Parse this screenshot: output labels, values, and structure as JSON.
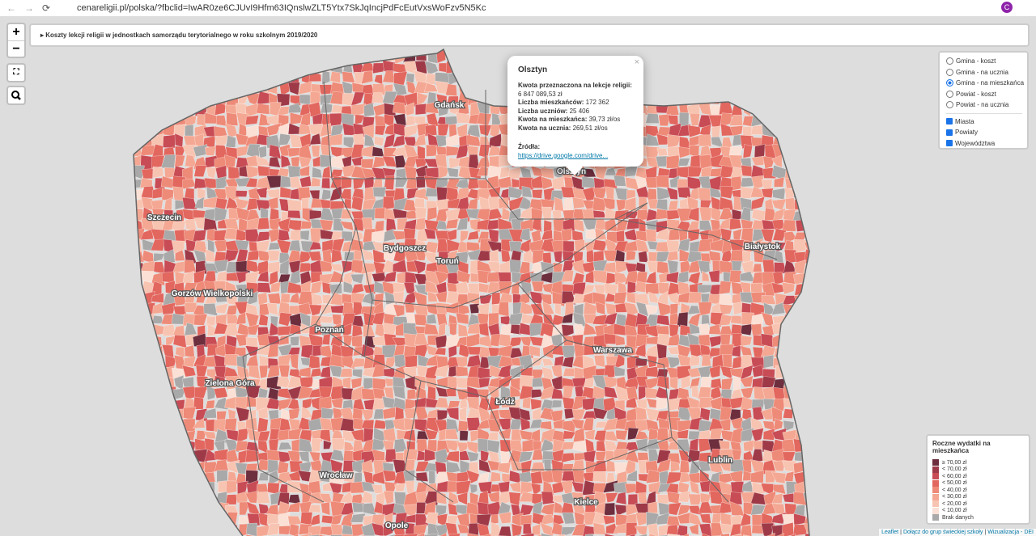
{
  "browser": {
    "url": "cenareligii.pl/polska/?fbclid=IwAR0ze6CJUvI9Hfm63IQnslwZLT5Ytx7SkJqIncjPdFcEutVxsWoFzv5N5Kc"
  },
  "controls": {
    "zoom_in": "+",
    "zoom_out": "−"
  },
  "header": {
    "title": "Koszty lekcji religii w jednostkach samorządu terytorialnego w roku szkolnym 2019/2020"
  },
  "popup": {
    "title": "Olsztyn",
    "close": "×",
    "lines": [
      {
        "label": "Kwota przeznaczona na lekcje religii:",
        "value": "6 847 089,53 zł"
      },
      {
        "label": "Liczba mieszkańców:",
        "value": "172 362"
      },
      {
        "label": "Liczba uczniów:",
        "value": "25 406"
      },
      {
        "label": "Kwota na mieszkańca:",
        "value": "39,73 zł/os"
      },
      {
        "label": "Kwota na ucznia:",
        "value": "269,51 zł/os"
      }
    ],
    "sources_label": "Źródła:",
    "sources_link": "https://drive.google.com/drive..."
  },
  "layers": {
    "base": [
      "Gmina - koszt",
      "Gmina - na ucznia",
      "Gmina - na mieszkańca",
      "Powiat - koszt",
      "Powiat - na ucznia"
    ],
    "selected": 2,
    "overlays": [
      "Miasta",
      "Powiaty",
      "Województwa"
    ]
  },
  "city_labels": [
    "Gdańsk",
    "Olsztyn",
    "Szczecin",
    "Bydgoszcz",
    "Toruń",
    "Białystok",
    "Gorzów Wielkopolski",
    "Poznań",
    "Warszawa",
    "Zielona Góra",
    "Łódź",
    "Lublin",
    "Wrocław",
    "Kielce",
    "Opole"
  ],
  "legend": {
    "title": "Roczne wydatki na mieszkańca",
    "items": [
      {
        "label": "≥ 70,00 zł",
        "color": "#6d2e3e"
      },
      {
        "label": "< 70,00 zł",
        "color": "#9e3a48"
      },
      {
        "label": "< 60,00 zł",
        "color": "#c84c55"
      },
      {
        "label": "< 50,00 zł",
        "color": "#e2675f"
      },
      {
        "label": "< 40,00 zł",
        "color": "#ee8a78"
      },
      {
        "label": "< 30,00 zł",
        "color": "#f4a893"
      },
      {
        "label": "< 20,00 zł",
        "color": "#f8c4b2"
      },
      {
        "label": "< 10,00 zł",
        "color": "#fbe0d5"
      },
      {
        "label": "Brak danych",
        "color": "#a9a9a9"
      }
    ]
  },
  "attribution": [
    "Leaflet",
    "Dołącz do grup świeckiej szkoły",
    "Wizualizacja - DEI"
  ]
}
